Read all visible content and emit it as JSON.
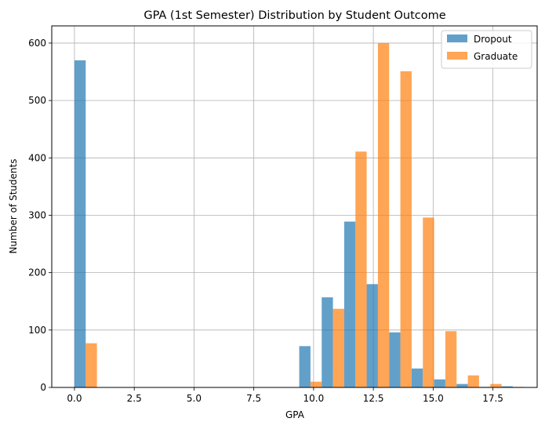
{
  "chart_data": {
    "type": "bar",
    "title": "GPA (1st Semester) Distribution by Student Outcome",
    "xlabel": "GPA",
    "ylabel": "Number of Students",
    "xlim": [
      -0.95,
      19.35
    ],
    "ylim": [
      0,
      630
    ],
    "xticks": [
      0,
      2.5,
      5,
      7.5,
      10,
      12.5,
      15,
      17.5
    ],
    "xtick_labels": [
      "0.0",
      "2.5",
      "5.0",
      "7.5",
      "10.0",
      "12.5",
      "15.0",
      "17.5"
    ],
    "yticks": [
      0,
      100,
      200,
      300,
      400,
      500,
      600
    ],
    "ytick_labels": [
      "0",
      "100",
      "200",
      "300",
      "400",
      "500",
      "600"
    ],
    "grid": true,
    "legend_position": "top-right",
    "bin_edges": [
      0.0,
      0.94,
      1.88,
      2.82,
      3.76,
      4.7,
      5.64,
      6.58,
      7.52,
      8.46,
      9.4,
      10.34,
      11.28,
      12.22,
      13.16,
      14.1,
      15.04,
      15.98,
      16.92,
      17.86,
      18.8
    ],
    "series": [
      {
        "name": "Dropout",
        "color": "#1f77b4",
        "values": [
          570,
          0,
          0,
          0,
          0,
          0,
          0,
          0,
          0,
          0,
          72,
          157,
          289,
          180,
          96,
          33,
          14,
          6,
          1,
          2
        ]
      },
      {
        "name": "Graduate",
        "color": "#ff7f0e",
        "values": [
          77,
          0,
          0,
          0,
          0,
          0,
          0,
          0,
          0,
          0,
          10,
          137,
          411,
          600,
          551,
          296,
          98,
          21,
          6,
          1
        ]
      }
    ]
  }
}
